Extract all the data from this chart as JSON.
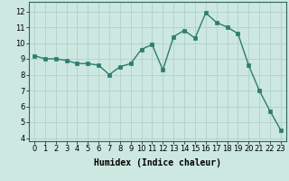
{
  "x": [
    0,
    1,
    2,
    3,
    4,
    5,
    6,
    7,
    8,
    9,
    10,
    11,
    12,
    13,
    14,
    15,
    16,
    17,
    18,
    19,
    20,
    21,
    22,
    23
  ],
  "y": [
    9.2,
    9.0,
    9.0,
    8.9,
    8.7,
    8.7,
    8.6,
    8.0,
    8.5,
    8.7,
    9.6,
    9.9,
    8.3,
    10.4,
    10.8,
    10.3,
    11.9,
    11.3,
    11.0,
    10.6,
    8.6,
    7.0,
    5.7,
    4.5
  ],
  "line_color": "#2e7d6e",
  "marker": "s",
  "marker_size": 2.2,
  "line_width": 1.0,
  "bg_color": "#cce8e0",
  "grid_color": "#aaccc4",
  "xlabel": "Humidex (Indice chaleur)",
  "xlim": [
    -0.5,
    23.5
  ],
  "ylim": [
    3.8,
    12.6
  ],
  "yticks": [
    4,
    5,
    6,
    7,
    8,
    9,
    10,
    11,
    12
  ],
  "xticks": [
    0,
    1,
    2,
    3,
    4,
    5,
    6,
    7,
    8,
    9,
    10,
    11,
    12,
    13,
    14,
    15,
    16,
    17,
    18,
    19,
    20,
    21,
    22,
    23
  ],
  "tick_label_fontsize": 6,
  "xlabel_fontsize": 7
}
